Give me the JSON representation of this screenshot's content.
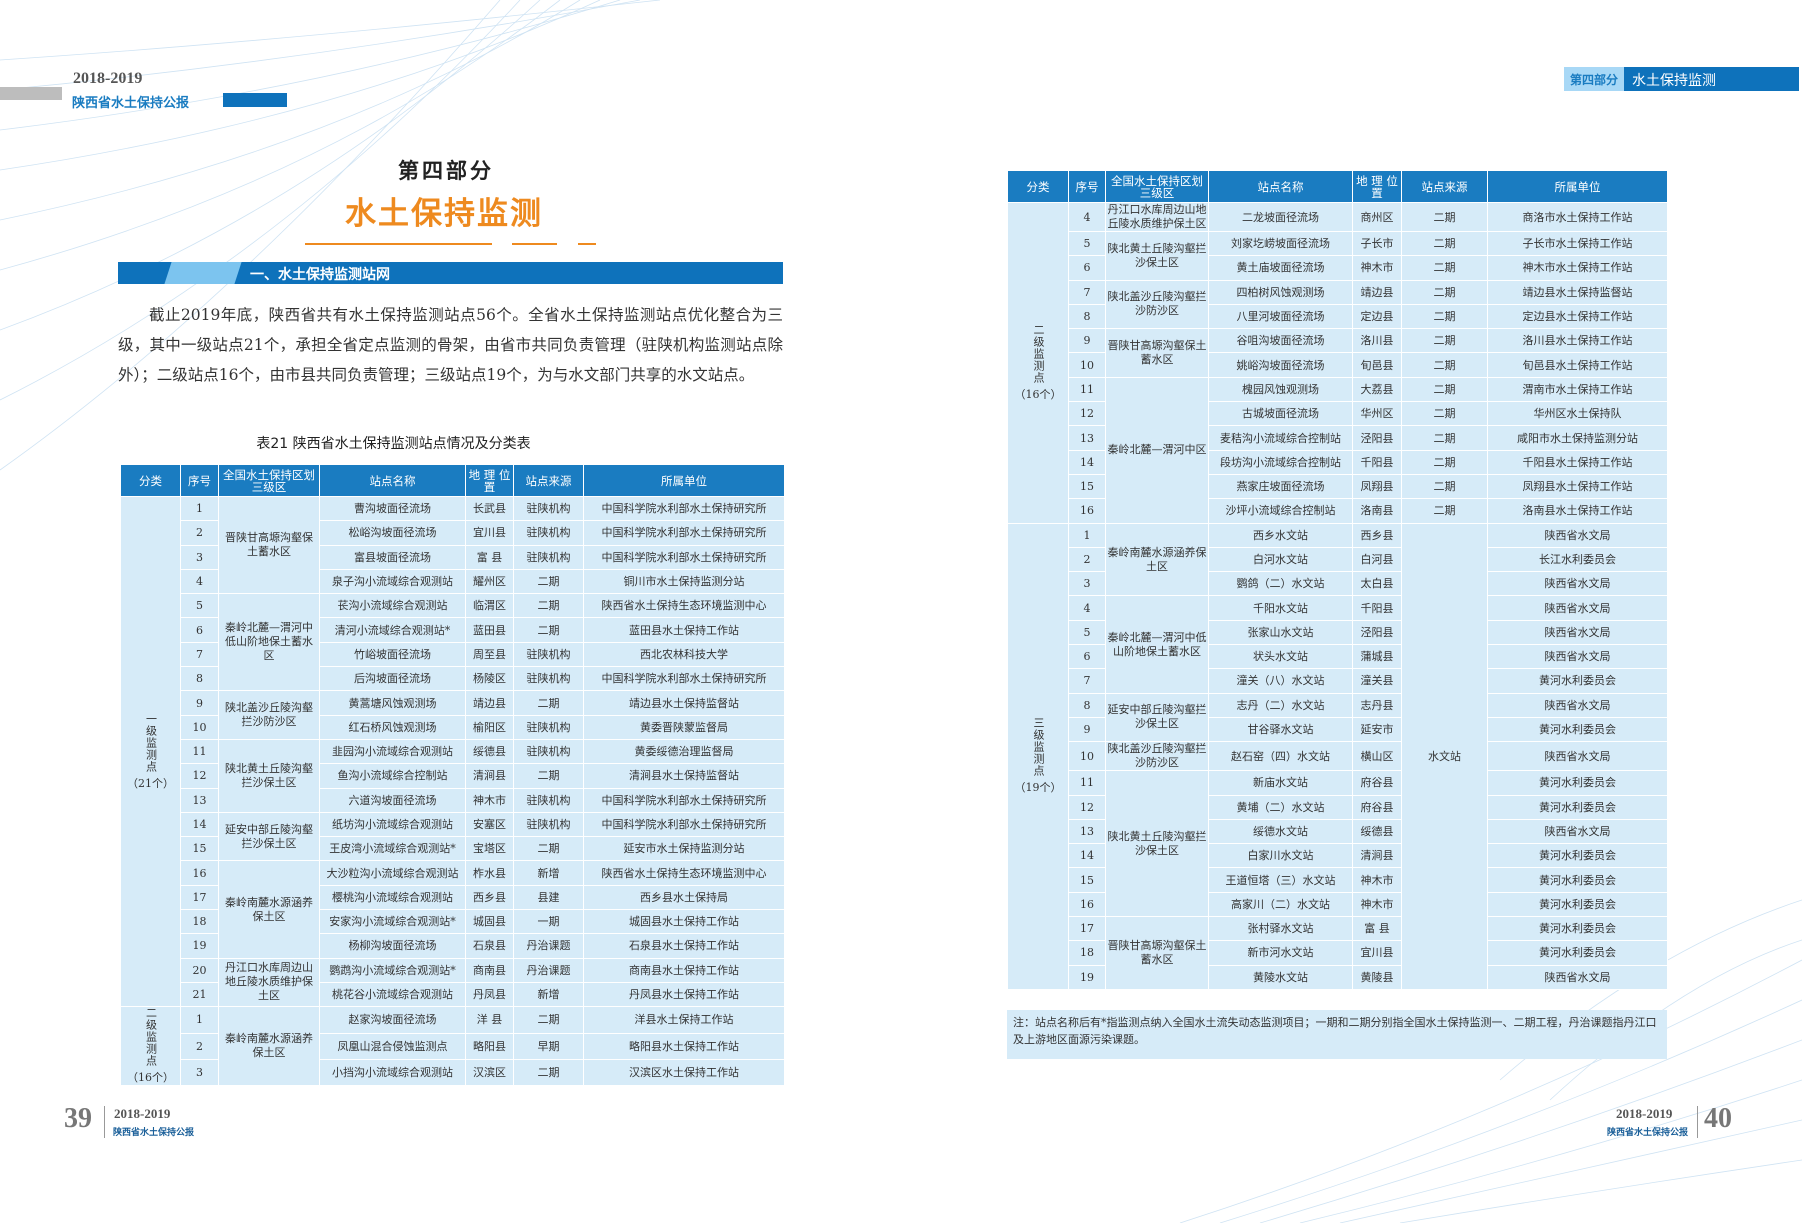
{
  "header_left": {
    "years": "2018-2019",
    "title": "陕西省水土保持公报"
  },
  "header_right": {
    "part": "第四部分",
    "section": "水土保持监测"
  },
  "part_label": "第四部分",
  "part_title": "水土保持监测",
  "section_heading": "一、水土保持监测站网",
  "paragraph": "截止2019年底，陕西省共有水土保持监测站点56个。全省水土保持监测站点优化整合为三级，其中一级站点21个，承担全省定点监测的骨架，由省市共同负责管理（驻陕机构监测站点除外）；二级站点16个，由市县共同负责管理；三级站点19个，为与水文部门共享的水文站点。",
  "table_caption": "表21 陕西省水土保持监测站点情况及分类表",
  "columns": [
    "分类",
    "序号",
    "全国水土保持区划三级区",
    "站点名称",
    "地 理 位 置",
    "站点来源",
    "所属单位"
  ],
  "colors": {
    "header_blue": "#1a7cc1",
    "cell_bg": "#d6ebf8",
    "title_orange": "#ee8a1f"
  },
  "left_table": [
    {
      "label": "一级监测点",
      "count": "（21个）",
      "zones": [
        {
          "name": "晋陕甘高塬沟壑保土蓄水区",
          "stations": [
            {
              "no": "1",
              "name": "曹沟坡面径流场",
              "loc": "长武县",
              "source": "驻陕机构",
              "unit": "中国科学院水利部水土保持研究所"
            },
            {
              "no": "2",
              "name": "松峪沟坡面径流场",
              "loc": "宜川县",
              "source": "驻陕机构",
              "unit": "中国科学院水利部水土保持研究所"
            },
            {
              "no": "3",
              "name": "富县坡面径流场",
              "loc": "富 县",
              "source": "驻陕机构",
              "unit": "中国科学院水利部水土保持研究所"
            },
            {
              "no": "4",
              "name": "泉子沟小流域综合观测站",
              "loc": "耀州区",
              "source": "二期",
              "unit": "铜川市水土保持监测分站"
            }
          ]
        },
        {
          "name": "秦岭北麓—渭河中低山阶地保土蓄水区",
          "stations": [
            {
              "no": "5",
              "name": "苌沟小流域综合观测站",
              "loc": "临渭区",
              "source": "二期",
              "unit": "陕西省水土保持生态环境监测中心"
            },
            {
              "no": "6",
              "name": "清河小流域综合观测站*",
              "loc": "蓝田县",
              "source": "二期",
              "unit": "蓝田县水土保持工作站"
            },
            {
              "no": "7",
              "name": "竹峪坡面径流场",
              "loc": "周至县",
              "source": "驻陕机构",
              "unit": "西北农林科技大学"
            },
            {
              "no": "8",
              "name": "后沟坡面径流场",
              "loc": "杨陵区",
              "source": "驻陕机构",
              "unit": "中国科学院水利部水土保持研究所"
            }
          ]
        },
        {
          "name": "陕北盖沙丘陵沟壑拦沙防沙区",
          "stations": [
            {
              "no": "9",
              "name": "黄蒿塘风蚀观测场",
              "loc": "靖边县",
              "source": "二期",
              "unit": "靖边县水土保持监督站"
            },
            {
              "no": "10",
              "name": "红石桥风蚀观测场",
              "loc": "榆阳区",
              "source": "驻陕机构",
              "unit": "黄委晋陕蒙监督局"
            }
          ]
        },
        {
          "name": "陕北黄土丘陵沟壑拦沙保土区",
          "stations": [
            {
              "no": "11",
              "name": "韭园沟小流域综合观测站",
              "loc": "绥德县",
              "source": "驻陕机构",
              "unit": "黄委绥德治理监督局"
            },
            {
              "no": "12",
              "name": "鱼沟小流域综合控制站",
              "loc": "清涧县",
              "source": "二期",
              "unit": "清涧县水土保持监督站"
            },
            {
              "no": "13",
              "name": "六道沟坡面径流场",
              "loc": "神木市",
              "source": "驻陕机构",
              "unit": "中国科学院水利部水土保持研究所"
            }
          ]
        },
        {
          "name": "延安中部丘陵沟壑拦沙保土区",
          "stations": [
            {
              "no": "14",
              "name": "纸坊沟小流域综合观测站",
              "loc": "安塞区",
              "source": "驻陕机构",
              "unit": "中国科学院水利部水土保持研究所"
            },
            {
              "no": "15",
              "name": "王皮湾小流域综合观测站*",
              "loc": "宝塔区",
              "source": "二期",
              "unit": "延安市水土保持监测分站"
            }
          ]
        },
        {
          "name": "秦岭南麓水源涵养保土区",
          "stations": [
            {
              "no": "16",
              "name": "大沙粒沟小流域综合观测站",
              "loc": "柞水县",
              "source": "新增",
              "unit": "陕西省水土保持生态环境监测中心"
            },
            {
              "no": "17",
              "name": "樱桃沟小流域综合观测站",
              "loc": "西乡县",
              "source": "县建",
              "unit": "西乡县水土保持局"
            },
            {
              "no": "18",
              "name": "安家沟小流域综合观测站*",
              "loc": "城固县",
              "source": "一期",
              "unit": "城固县水土保持工作站"
            },
            {
              "no": "19",
              "name": "杨柳沟坡面径流场",
              "loc": "石泉县",
              "source": "丹治课题",
              "unit": "石泉县水土保持工作站"
            }
          ]
        },
        {
          "name": "丹江口水库周边山地丘陵水质维护保土区",
          "stations": [
            {
              "no": "20",
              "name": "鹦鹉沟小流域综合观测站*",
              "loc": "商南县",
              "source": "丹治课题",
              "unit": "商南县水土保持工作站"
            },
            {
              "no": "21",
              "name": "桃花谷小流域综合观测站",
              "loc": "丹凤县",
              "source": "新增",
              "unit": "丹凤县水土保持工作站"
            }
          ]
        }
      ]
    },
    {
      "label": "二级监测点",
      "count": "（16个）",
      "zones": [
        {
          "name": "秦岭南麓水源涵养保土区",
          "stations": [
            {
              "no": "1",
              "name": "赵家沟坡面径流场",
              "loc": "洋 县",
              "source": "二期",
              "unit": "洋县水土保持工作站"
            },
            {
              "no": "2",
              "name": "凤凰山混合侵蚀监测点",
              "loc": "略阳县",
              "source": "早期",
              "unit": "略阳县水土保持工作站"
            },
            {
              "no": "3",
              "name": "小挡沟小流域综合观测站",
              "loc": "汉滨区",
              "source": "二期",
              "unit": "汉滨区水土保持工作站"
            }
          ]
        }
      ]
    }
  ],
  "right_table": [
    {
      "label": "二级监测点",
      "count": "（16个）",
      "zones": [
        {
          "name": "丹江口水库周边山地丘陵水质维护保土区",
          "stations": [
            {
              "no": "4",
              "name": "二龙坡面径流场",
              "loc": "商州区",
              "source": "二期",
              "unit": "商洛市水土保持工作站"
            }
          ]
        },
        {
          "name": "陕北黄土丘陵沟壑拦沙保土区",
          "stations": [
            {
              "no": "5",
              "name": "刘家圪崂坡面径流场",
              "loc": "子长市",
              "source": "二期",
              "unit": "子长市水土保持工作站"
            },
            {
              "no": "6",
              "name": "黄土庙坡面径流场",
              "loc": "神木市",
              "source": "二期",
              "unit": "神木市水土保持工作站"
            }
          ]
        },
        {
          "name": "陕北盖沙丘陵沟壑拦沙防沙区",
          "stations": [
            {
              "no": "7",
              "name": "四柏树风蚀观测场",
              "loc": "靖边县",
              "source": "二期",
              "unit": "靖边县水土保持监督站"
            },
            {
              "no": "8",
              "name": "八里河坡面径流场",
              "loc": "定边县",
              "source": "二期",
              "unit": "定边县水土保持工作站"
            }
          ]
        },
        {
          "name": "晋陕甘高塬沟壑保土蓄水区",
          "stations": [
            {
              "no": "9",
              "name": "谷咀沟坡面径流场",
              "loc": "洛川县",
              "source": "二期",
              "unit": "洛川县水土保持工作站"
            },
            {
              "no": "10",
              "name": "姚峪沟坡面径流场",
              "loc": "旬邑县",
              "source": "二期",
              "unit": "旬邑县水土保持工作站"
            }
          ]
        },
        {
          "name": "秦岭北麓—渭河中区",
          "stations": [
            {
              "no": "11",
              "name": "槐园风蚀观测场",
              "loc": "大荔县",
              "source": "二期",
              "unit": "渭南市水土保持工作站"
            },
            {
              "no": "12",
              "name": "古城坡面径流场",
              "loc": "华州区",
              "source": "二期",
              "unit": "华州区水土保持队"
            },
            {
              "no": "13",
              "name": "麦秸沟小流域综合控制站",
              "loc": "泾阳县",
              "source": "二期",
              "unit": "咸阳市水土保持监测分站"
            },
            {
              "no": "14",
              "name": "段坊沟小流域综合控制站",
              "loc": "千阳县",
              "source": "二期",
              "unit": "千阳县水土保持工作站"
            },
            {
              "no": "15",
              "name": "燕家庄坡面径流场",
              "loc": "凤翔县",
              "source": "二期",
              "unit": "凤翔县水土保持工作站"
            },
            {
              "no": "16",
              "name": "沙坪小流域综合控制站",
              "loc": "洛南县",
              "source": "二期",
              "unit": "洛南县水土保持工作站"
            }
          ]
        }
      ]
    },
    {
      "label": "三级监测点",
      "count": "（19个）",
      "shared_source": "水文站",
      "zones": [
        {
          "name": "秦岭南麓水源涵养保土区",
          "stations": [
            {
              "no": "1",
              "name": "西乡水文站",
              "loc": "西乡县",
              "unit": "陕西省水文局"
            },
            {
              "no": "2",
              "name": "白河水文站",
              "loc": "白河县",
              "unit": "长江水利委员会"
            },
            {
              "no": "3",
              "name": "鹦鸽（二）水文站",
              "loc": "太白县",
              "unit": "陕西省水文局"
            }
          ]
        },
        {
          "name": "秦岭北麓—渭河中低山阶地保土蓄水区",
          "stations": [
            {
              "no": "4",
              "name": "千阳水文站",
              "loc": "千阳县",
              "unit": "陕西省水文局"
            },
            {
              "no": "5",
              "name": "张家山水文站",
              "loc": "泾阳县",
              "unit": "陕西省水文局"
            },
            {
              "no": "6",
              "name": "状头水文站",
              "loc": "蒲城县",
              "unit": "陕西省水文局"
            },
            {
              "no": "7",
              "name": "潼关（八）水文站",
              "loc": "潼关县",
              "unit": "黄河水利委员会"
            }
          ]
        },
        {
          "name": "延安中部丘陵沟壑拦沙保土区",
          "stations": [
            {
              "no": "8",
              "name": "志丹（二）水文站",
              "loc": "志丹县",
              "unit": "陕西省水文局"
            },
            {
              "no": "9",
              "name": "甘谷驿水文站",
              "loc": "延安市",
              "unit": "黄河水利委员会"
            }
          ]
        },
        {
          "name": "陕北盖沙丘陵沟壑拦沙防沙区",
          "stations": [
            {
              "no": "10",
              "name": "赵石窑（四）水文站",
              "loc": "横山区",
              "unit": "陕西省水文局"
            }
          ]
        },
        {
          "name": "陕北黄土丘陵沟壑拦沙保土区",
          "stations": [
            {
              "no": "11",
              "name": "新庙水文站",
              "loc": "府谷县",
              "unit": "黄河水利委员会"
            },
            {
              "no": "12",
              "name": "黄埔（二）水文站",
              "loc": "府谷县",
              "unit": "黄河水利委员会"
            },
            {
              "no": "13",
              "name": "绥德水文站",
              "loc": "绥德县",
              "unit": "陕西省水文局"
            },
            {
              "no": "14",
              "name": "白家川水文站",
              "loc": "清涧县",
              "unit": "黄河水利委员会"
            },
            {
              "no": "15",
              "name": "王道恒塔（三）水文站",
              "loc": "神木市",
              "unit": "黄河水利委员会"
            },
            {
              "no": "16",
              "name": "高家川（二）水文站",
              "loc": "神木市",
              "unit": "黄河水利委员会"
            }
          ]
        },
        {
          "name": "晋陕甘高塬沟壑保土蓄水区",
          "stations": [
            {
              "no": "17",
              "name": "张村驿水文站",
              "loc": "富 县",
              "unit": "黄河水利委员会"
            },
            {
              "no": "18",
              "name": "新市河水文站",
              "loc": "宜川县",
              "unit": "黄河水利委员会"
            },
            {
              "no": "19",
              "name": "黄陵水文站",
              "loc": "黄陵县",
              "unit": "陕西省水文局"
            }
          ]
        }
      ]
    }
  ],
  "note": "注：站点名称后有*指监测点纳入全国水土流失动态监测项目；一期和二期分别指全国水土保持监测一、二期工程，丹治课题指丹江口及上游地区面源污染课题。",
  "footer_left": {
    "page": "39",
    "years": "2018-2019",
    "title": "陕西省水土保持公报"
  },
  "footer_right": {
    "page": "40",
    "years": "2018-2019",
    "title": "陕西省水土保持公报"
  }
}
